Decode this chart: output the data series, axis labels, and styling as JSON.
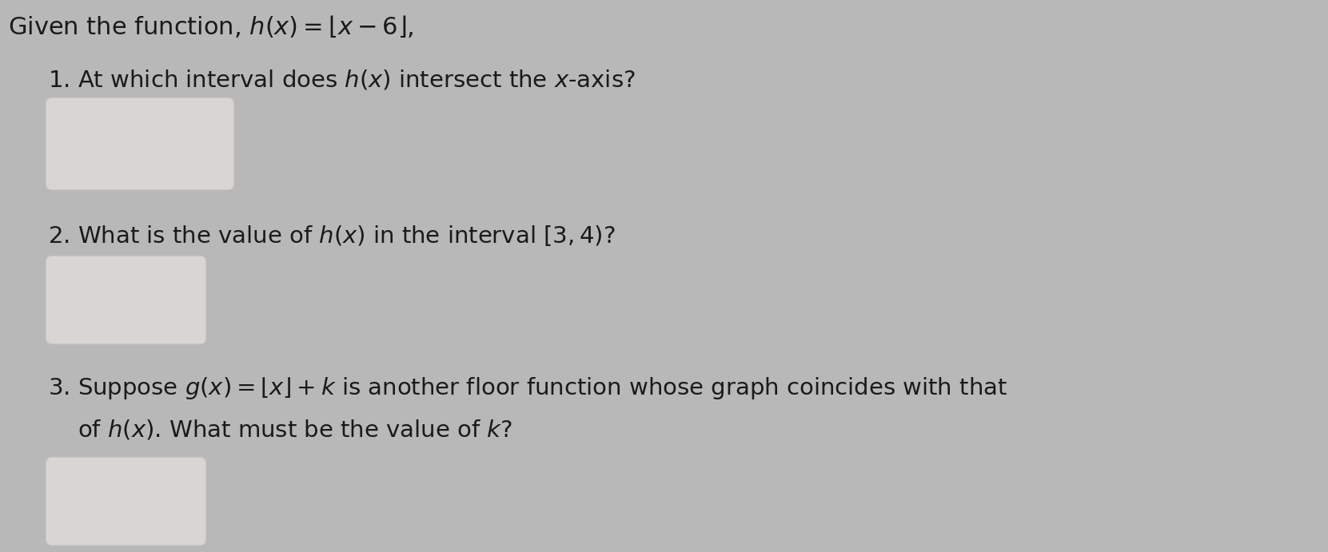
{
  "background_color": "#b8b8b8",
  "title_text": "Given the function, $h(x) = \\lfloor x - 6 \\rfloor,$",
  "q1_text": "1. At which interval does $h(x)$ intersect the $x$-axis?",
  "q2_text": "2. What is the value of $h(x)$ in the interval $[3, 4)$?",
  "q3_line1": "3. Suppose $g(x) = \\lfloor x \\rfloor + k$ is another floor function whose graph coincides with that",
  "q3_line2": "    of $h(x)$. What must be the value of $k$?",
  "box_color": "#d8d5d2",
  "box_edge_color": "#c0bcb8",
  "title_fontsize": 22,
  "q_fontsize": 21,
  "text_color": "#1a1a1a"
}
